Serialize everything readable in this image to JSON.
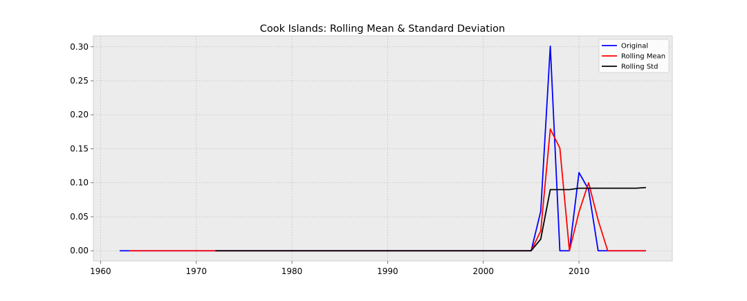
{
  "chart_data": {
    "type": "line",
    "title": "Cook Islands: Rolling Mean & Standard Deviation",
    "xlabel": "",
    "ylabel": "",
    "xlim": [
      1959.25,
      2019.75
    ],
    "ylim": [
      -0.015,
      0.316
    ],
    "xticks": [
      1960,
      1970,
      1980,
      1990,
      2000,
      2010
    ],
    "yticks": [
      0.0,
      0.05,
      0.1,
      0.15,
      0.2,
      0.25,
      0.3
    ],
    "ytick_labels": [
      "0.00",
      "0.05",
      "0.10",
      "0.15",
      "0.20",
      "0.25",
      "0.30"
    ],
    "grid": true,
    "legend_position": "top-right",
    "background": "#ececec",
    "series": [
      {
        "name": "Original",
        "color": "#0000ff",
        "x": [
          1962,
          1963,
          1964,
          1965,
          1966,
          1967,
          1968,
          1969,
          1970,
          1971,
          1972,
          1973,
          1974,
          1975,
          1976,
          1977,
          1978,
          1979,
          1980,
          1981,
          1982,
          1983,
          1984,
          1985,
          1986,
          1987,
          1988,
          1989,
          1990,
          1991,
          1992,
          1993,
          1994,
          1995,
          1996,
          1997,
          1998,
          1999,
          2000,
          2001,
          2002,
          2003,
          2004,
          2005,
          2006,
          2007,
          2008,
          2009,
          2010,
          2011,
          2012,
          2013,
          2014,
          2015,
          2016,
          2017
        ],
        "y": [
          0,
          0,
          0,
          0,
          0,
          0,
          0,
          0,
          0,
          0,
          0,
          0,
          0,
          0,
          0,
          0,
          0,
          0,
          0,
          0,
          0,
          0,
          0,
          0,
          0,
          0,
          0,
          0,
          0,
          0,
          0,
          0,
          0,
          0,
          0,
          0,
          0,
          0,
          0,
          0,
          0,
          0,
          0,
          0,
          0.058,
          0.301,
          0,
          0,
          0.115,
          0.09,
          0,
          0,
          0,
          0,
          0,
          0
        ]
      },
      {
        "name": "Rolling Mean",
        "color": "#ff0000",
        "x": [
          1963,
          1964,
          1965,
          1966,
          1967,
          1968,
          1969,
          1970,
          1971,
          1972,
          1973,
          1974,
          1975,
          1976,
          1977,
          1978,
          1979,
          1980,
          1981,
          1982,
          1983,
          1984,
          1985,
          1986,
          1987,
          1988,
          1989,
          1990,
          1991,
          1992,
          1993,
          1994,
          1995,
          1996,
          1997,
          1998,
          1999,
          2000,
          2001,
          2002,
          2003,
          2004,
          2005,
          2006,
          2007,
          2008,
          2009,
          2010,
          2011,
          2012,
          2013,
          2014,
          2015,
          2016,
          2017
        ],
        "y": [
          0,
          0,
          0,
          0,
          0,
          0,
          0,
          0,
          0,
          0,
          0,
          0,
          0,
          0,
          0,
          0,
          0,
          0,
          0,
          0,
          0,
          0,
          0,
          0,
          0,
          0,
          0,
          0,
          0,
          0,
          0,
          0,
          0,
          0,
          0,
          0,
          0,
          0,
          0,
          0,
          0,
          0,
          0,
          0.029,
          0.179,
          0.151,
          0,
          0.057,
          0.1,
          0.045,
          0,
          0,
          0,
          0,
          0
        ]
      },
      {
        "name": "Rolling Std",
        "color": "#000000",
        "x": [
          1972,
          1973,
          1974,
          1975,
          1976,
          1977,
          1978,
          1979,
          1980,
          1981,
          1982,
          1983,
          1984,
          1985,
          1986,
          1987,
          1988,
          1989,
          1990,
          1991,
          1992,
          1993,
          1994,
          1995,
          1996,
          1997,
          1998,
          1999,
          2000,
          2001,
          2002,
          2003,
          2004,
          2005,
          2006,
          2007,
          2008,
          2009,
          2010,
          2011,
          2012,
          2013,
          2014,
          2015,
          2016,
          2017
        ],
        "y": [
          0,
          0,
          0,
          0,
          0,
          0,
          0,
          0,
          0,
          0,
          0,
          0,
          0,
          0,
          0,
          0,
          0,
          0,
          0,
          0,
          0,
          0,
          0,
          0,
          0,
          0,
          0,
          0,
          0,
          0,
          0,
          0,
          0,
          0,
          0.017,
          0.09,
          0.09,
          0.09,
          0.092,
          0.092,
          0.092,
          0.092,
          0.092,
          0.092,
          0.092,
          0.093
        ]
      }
    ]
  }
}
